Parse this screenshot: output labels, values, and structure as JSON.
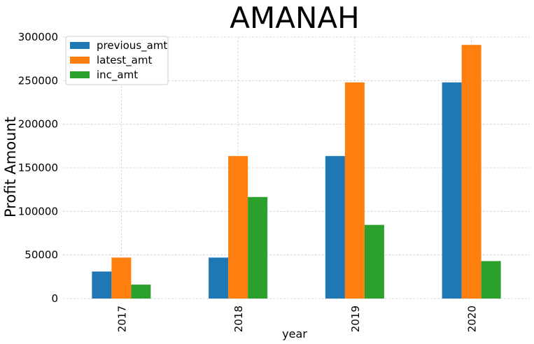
{
  "chart_data": {
    "type": "bar",
    "title": "AMANAH",
    "xlabel": "year",
    "ylabel": "Profit Amount",
    "categories": [
      "2017",
      "2018",
      "2019",
      "2020"
    ],
    "series": [
      {
        "name": "previous_amt",
        "color": "#1f77b4",
        "values": [
          31000,
          47000,
          163500,
          248000
        ]
      },
      {
        "name": "latest_amt",
        "color": "#ff7f0e",
        "values": [
          47000,
          163500,
          248000,
          291000
        ]
      },
      {
        "name": "inc_amt",
        "color": "#2ca02c",
        "values": [
          16000,
          116500,
          84500,
          43000
        ]
      }
    ],
    "ylim": [
      0,
      300000
    ],
    "yticks": [
      0,
      50000,
      100000,
      150000,
      200000,
      250000,
      300000
    ],
    "grid": true,
    "legend_position": "top-left"
  }
}
